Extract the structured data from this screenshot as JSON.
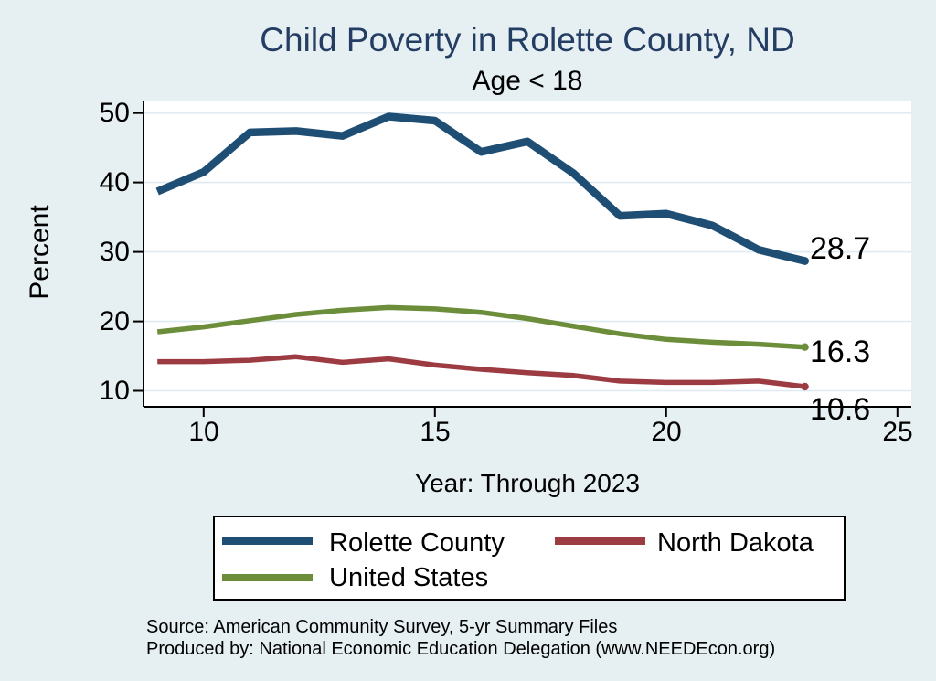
{
  "title": {
    "text": "Child Poverty in Rolette County, ND",
    "color": "#243d63"
  },
  "subtitle": "Age < 18",
  "chart_data": {
    "type": "line",
    "x": [
      2009,
      2010,
      2011,
      2012,
      2013,
      2014,
      2015,
      2016,
      2017,
      2018,
      2019,
      2020,
      2021,
      2022,
      2023
    ],
    "series": [
      {
        "name": "Rolette County",
        "color": "#1f4e74",
        "line_width": 8.5,
        "values": [
          38.7,
          41.5,
          47.2,
          47.4,
          46.7,
          49.5,
          48.9,
          44.4,
          45.9,
          41.3,
          35.2,
          35.5,
          33.8,
          30.3,
          28.7
        ],
        "end_label": "28.7"
      },
      {
        "name": "North Dakota",
        "color": "#9d3b42",
        "line_width": 5.5,
        "values": [
          14.2,
          14.2,
          14.4,
          14.9,
          14.1,
          14.6,
          13.7,
          13.1,
          12.6,
          12.2,
          11.4,
          11.2,
          11.2,
          11.4,
          10.6
        ],
        "end_label": "10.6"
      },
      {
        "name": "United States",
        "color": "#6c8d39",
        "line_width": 5.5,
        "values": [
          18.5,
          19.2,
          20.1,
          21.0,
          21.6,
          22.0,
          21.8,
          21.3,
          20.4,
          19.3,
          18.2,
          17.4,
          17.0,
          16.7,
          16.3
        ],
        "end_label": "16.3"
      }
    ],
    "xlabel": "Year: Through 2023",
    "ylabel": "Percent",
    "xlim": [
      2008.7,
      2025.3
    ],
    "ylim": [
      7.7,
      51.8
    ],
    "xticks": {
      "values": [
        2010,
        2015,
        2020,
        2025
      ],
      "labels": [
        "10",
        "15",
        "20",
        "25"
      ]
    },
    "yticks": {
      "values": [
        10,
        20,
        30,
        40,
        50
      ],
      "labels": [
        "10",
        "20",
        "30",
        "40",
        "50"
      ]
    },
    "grid": "horizontal",
    "legend_position": "bottom"
  },
  "footer": {
    "source": "Source: American Community Survey, 5-yr Summary Files",
    "produced_by": "Produced by: National Economic Education Delegation (www.NEEDEcon.org)"
  },
  "colors": {
    "background": "#e6eff2",
    "plot_background": "#ffffff",
    "gridline": "#dfeaf2",
    "axis": "#000000"
  }
}
